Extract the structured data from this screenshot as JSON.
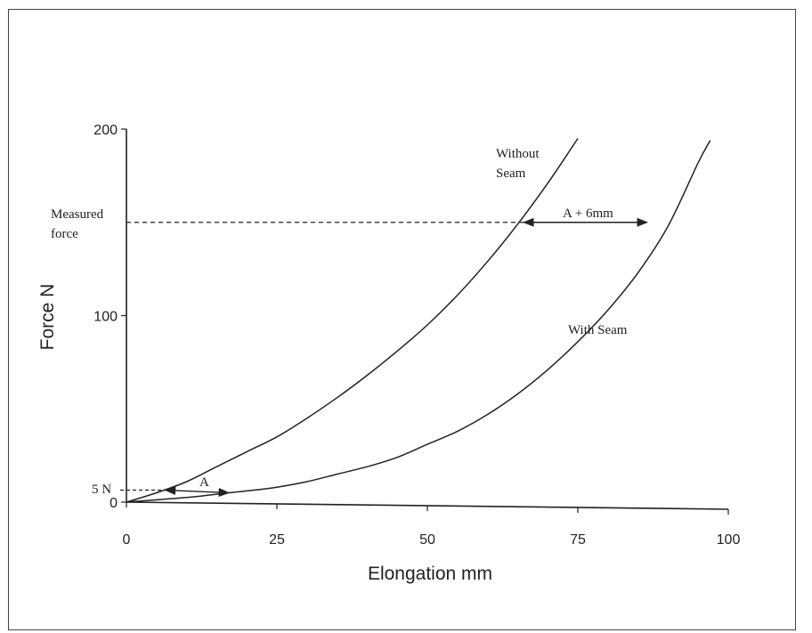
{
  "chart_data": {
    "type": "line",
    "xlabel": "Elongation mm",
    "ylabel": "Force N",
    "xlim": [
      0,
      100
    ],
    "ylim": [
      0,
      200
    ],
    "x_ticks": [
      0,
      25,
      50,
      75,
      100
    ],
    "y_ticks": [
      0,
      100,
      200
    ],
    "grid": false,
    "series": [
      {
        "name": "Without Seam",
        "x": [
          0,
          5,
          10,
          15,
          20,
          25,
          30,
          35,
          40,
          45,
          50,
          55,
          60,
          65,
          70,
          75
        ],
        "y": [
          0,
          5,
          11,
          19,
          27,
          35,
          45,
          56,
          68,
          81,
          95,
          111,
          129,
          149,
          171,
          195
        ]
      },
      {
        "name": "With Seam",
        "x": [
          0,
          10,
          17,
          20,
          25,
          30,
          35,
          40,
          45,
          50,
          55,
          60,
          65,
          70,
          75,
          80,
          85,
          90,
          95,
          97
        ],
        "y": [
          0,
          2.5,
          5,
          6,
          8,
          11,
          15,
          19,
          24,
          31,
          38,
          47,
          58,
          71,
          86,
          103,
          123,
          148,
          182,
          194
        ]
      }
    ],
    "annotations": {
      "measured_force_label": [
        "Measured",
        "force"
      ],
      "five_n_label": "5 N",
      "a_label": "A",
      "a_plus_label": "A + 6mm",
      "without_seam_label": [
        "Without",
        "Seam"
      ],
      "with_seam_label": "With Seam",
      "measured_force_value": 150,
      "five_n_value": 5,
      "a_arrow_x": [
        6.5,
        17
      ],
      "a_plus_arrow_x": [
        66,
        86.5
      ]
    }
  }
}
